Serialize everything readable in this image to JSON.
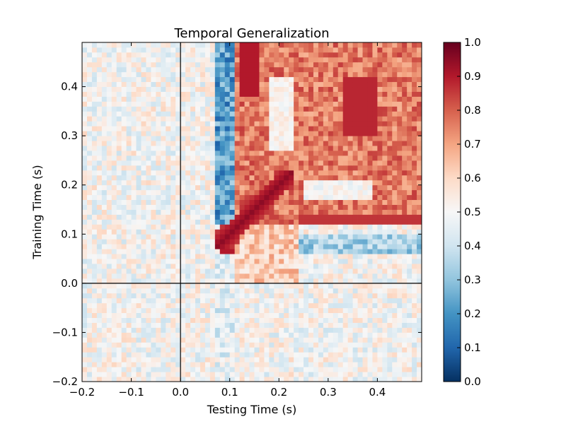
{
  "chart_data": {
    "type": "heatmap",
    "title": "Temporal Generalization",
    "xlabel": "Testing Time (s)",
    "ylabel": "Training Time (s)",
    "xlim": [
      -0.2,
      0.49
    ],
    "ylim": [
      -0.2,
      0.49
    ],
    "x_ticks": [
      -0.2,
      -0.1,
      0.0,
      0.1,
      0.2,
      0.3,
      0.4
    ],
    "x_tick_labels": [
      "−0.2",
      "−0.1",
      "0.0",
      "0.1",
      "0.2",
      "0.3",
      "0.4"
    ],
    "y_ticks": [
      -0.2,
      -0.1,
      0.0,
      0.1,
      0.2,
      0.3,
      0.4
    ],
    "y_tick_labels": [
      "−0.2",
      "−0.1",
      "0.0",
      "0.1",
      "0.2",
      "0.3",
      "0.4"
    ],
    "colorbar": {
      "range": [
        0.0,
        1.0
      ],
      "ticks": [
        0.0,
        0.1,
        0.2,
        0.3,
        0.4,
        0.5,
        0.6,
        0.7,
        0.8,
        0.9,
        1.0
      ],
      "tick_labels": [
        "0.0",
        "0.1",
        "0.2",
        "0.3",
        "0.4",
        "0.5",
        "0.6",
        "0.7",
        "0.8",
        "0.9",
        "1.0"
      ],
      "colormap": "RdBu_r",
      "colors": [
        "#053061",
        "#2166ac",
        "#4393c3",
        "#92c5de",
        "#d1e5f0",
        "#f7f7f7",
        "#fddbc7",
        "#f4a582",
        "#d6604d",
        "#b2182b",
        "#67001f"
      ]
    },
    "reference_lines": {
      "x": 0.0,
      "y": 0.0,
      "color": "#000000"
    },
    "cell_size_s": 0.01,
    "grid": false,
    "legend": "none",
    "description_of_values": "Score matrix: ~0.5 (chance) before 0.1 s; vertical low-score band at testing 0.07-0.11 s; high-score diagonal from (0.08, 0.08) to (0.22, 0.22); broad high region for training > 0.12 s and testing > 0.12 s with a lower vertical patch near testing 0.18-0.23 s / training 0.27-0.42 s; horizontal low band at training 0.06-0.10 s, testing 0.25-0.49 s."
  }
}
